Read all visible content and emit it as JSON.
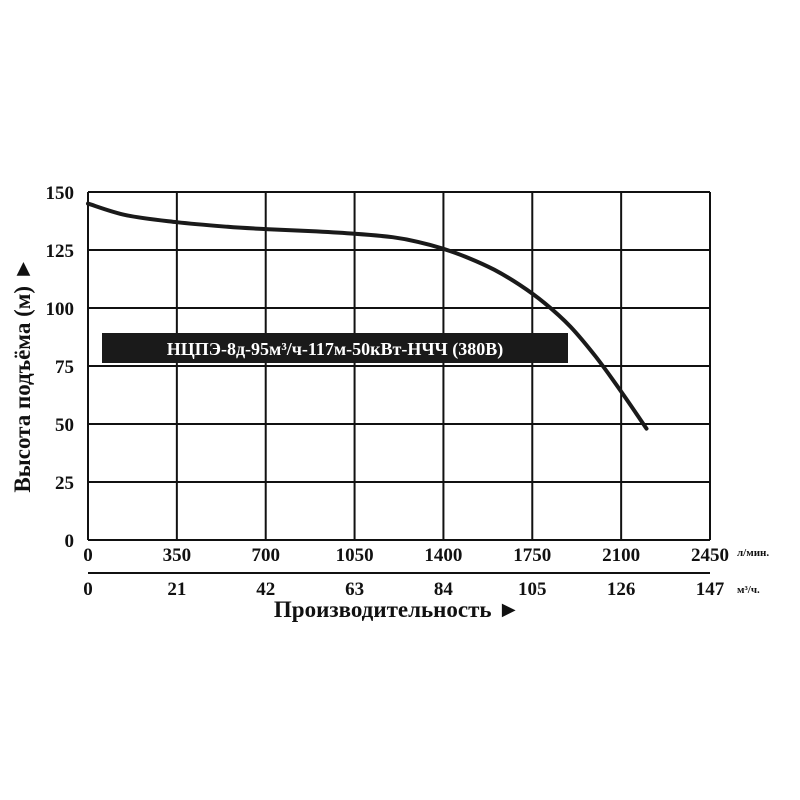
{
  "chart_data": {
    "type": "line",
    "ylabel": "Высота подъёма (м) ►",
    "xlabel": "Производительность ►",
    "ylim": [
      0,
      150
    ],
    "xlim": [
      0,
      2450
    ],
    "yticks": [
      "0",
      "25",
      "50",
      "75",
      "100",
      "125",
      "150"
    ],
    "xticks_primary": [
      "0",
      "350",
      "700",
      "1050",
      "1400",
      "1750",
      "2100",
      "2450"
    ],
    "xticks_secondary": [
      "0",
      "21",
      "42",
      "63",
      "84",
      "105",
      "126",
      "147"
    ],
    "x_unit_primary": "л/мин.",
    "x_unit_secondary": "м³/ч.",
    "grid": true,
    "series": [
      {
        "name": "НЦПЭ-8д-95м³/ч-117м-50кВт-НЧЧ (380В)",
        "x": [
          0,
          150,
          350,
          550,
          700,
          900,
          1050,
          1200,
          1300,
          1400,
          1500,
          1600,
          1700,
          1800,
          1900,
          2000,
          2100,
          2200
        ],
        "y": [
          145,
          140,
          137,
          135,
          134,
          133,
          132,
          130.5,
          128.5,
          125.5,
          121.5,
          116.5,
          110,
          102,
          92,
          79,
          64,
          48
        ]
      }
    ]
  }
}
